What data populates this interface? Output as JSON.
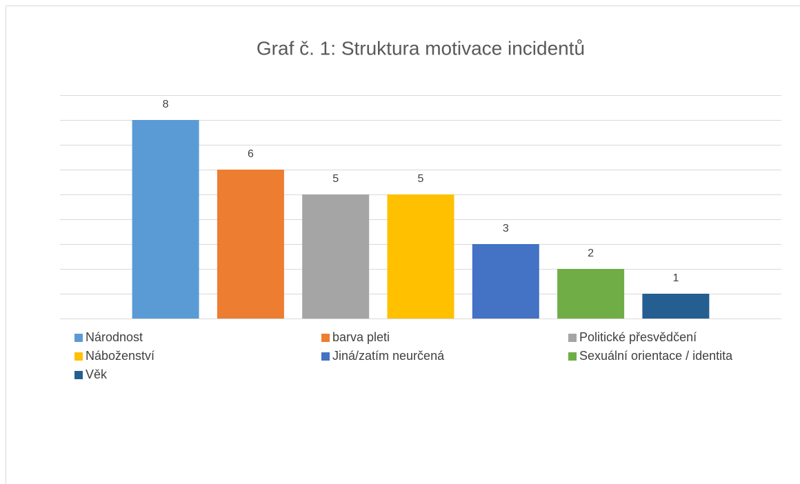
{
  "chart_data": {
    "type": "bar",
    "title": "Graf č. 1: Struktura motivace incidentů",
    "ylim": [
      0,
      9
    ],
    "yticks": [
      0,
      1,
      2,
      3,
      4,
      5,
      6,
      7,
      8,
      9
    ],
    "grid": true,
    "series": [
      {
        "name": "Národnost",
        "color": "#5b9bd5",
        "values": [
          8
        ]
      },
      {
        "name": "barva pleti",
        "color": "#ed7d31",
        "values": [
          6
        ]
      },
      {
        "name": "Politické přesvědčení",
        "color": "#a5a5a5",
        "values": [
          5
        ]
      },
      {
        "name": "Náboženství",
        "color": "#ffc000",
        "values": [
          5
        ]
      },
      {
        "name": "Jiná/zatím neurčená",
        "color": "#4472c4",
        "values": [
          3
        ]
      },
      {
        "name": "Sexuální orientace / identita",
        "color": "#70ad47",
        "values": [
          2
        ]
      },
      {
        "name": "Věk",
        "color": "#255e91",
        "values": [
          1
        ]
      }
    ]
  }
}
